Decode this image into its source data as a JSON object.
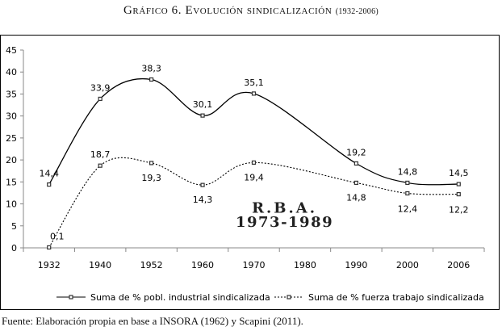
{
  "figure": {
    "title_prefix": "Gráfico 6. ",
    "title_main": "Evolución sindicalización",
    "title_years": "(1932-2006)",
    "source": "Fuente: Elaboración propia en base a INSORA (1962) y Scapini (2011)."
  },
  "chart_data": {
    "type": "line",
    "title": "Evolución sindicalización (1932-2006)",
    "xlabel": "",
    "ylabel": "",
    "categories": [
      "1932",
      "1940",
      "1952",
      "1960",
      "1970",
      "1980",
      "1990",
      "2000",
      "2006"
    ],
    "ylim": [
      0,
      45
    ],
    "yticks": [
      0,
      5,
      10,
      15,
      20,
      25,
      30,
      35,
      40,
      45
    ],
    "grid": false,
    "legend_position": "bottom",
    "series": [
      {
        "name": "Suma de % pobl. industrial sindicalizada",
        "style": "solid",
        "points": [
          {
            "x": "1932",
            "y": 14.4,
            "label": "14,4"
          },
          {
            "x": "1940",
            "y": 33.9,
            "label": "33,9"
          },
          {
            "x": "1952",
            "y": 38.3,
            "label": "38,3"
          },
          {
            "x": "1960",
            "y": 30.1,
            "label": "30,1"
          },
          {
            "x": "1970",
            "y": 35.1,
            "label": "35,1"
          },
          {
            "x": "1990",
            "y": 19.2,
            "label": "19,2"
          },
          {
            "x": "2000",
            "y": 14.8,
            "label": "14,8"
          },
          {
            "x": "2006",
            "y": 14.5,
            "label": "14,5"
          }
        ]
      },
      {
        "name": "Suma de % fuerza trabajo sindicalizada",
        "style": "dotted",
        "points": [
          {
            "x": "1932",
            "y": 0.1,
            "label": "0,1"
          },
          {
            "x": "1940",
            "y": 18.7,
            "label": "18,7"
          },
          {
            "x": "1952",
            "y": 19.3,
            "label": "19,3"
          },
          {
            "x": "1960",
            "y": 14.3,
            "label": "14,3"
          },
          {
            "x": "1970",
            "y": 19.4,
            "label": "19,4"
          },
          {
            "x": "1990",
            "y": 14.8,
            "label": "14,8"
          },
          {
            "x": "2000",
            "y": 12.4,
            "label": "12,4"
          },
          {
            "x": "2006",
            "y": 12.2,
            "label": "12,2"
          }
        ]
      }
    ],
    "annotations": [
      {
        "text": "R.B.A.",
        "x": "1990",
        "y": 8
      },
      {
        "text": "1973-1989",
        "x": "1990",
        "y": 4.8
      }
    ]
  }
}
